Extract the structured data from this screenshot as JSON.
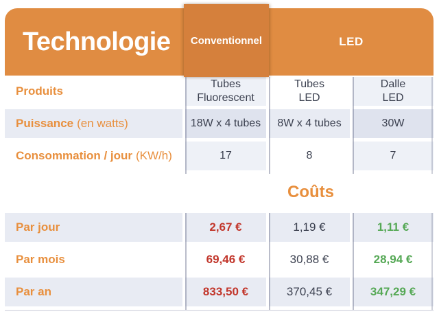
{
  "header": {
    "title": "Technologie",
    "columns": {
      "conventionnel": "Conventionnel",
      "led": "LED"
    }
  },
  "specs": {
    "produits": {
      "label": "Produits",
      "conventionnel": {
        "line1": "Tubes",
        "line2": "Fluorescent"
      },
      "tubes_led": {
        "line1": "Tubes",
        "line2": "LED"
      },
      "dalle_led": {
        "line1": "Dalle",
        "line2": "LED"
      }
    },
    "puissance": {
      "label": "Puissance",
      "unit": "(en watts)",
      "conventionnel": "18W x 4 tubes",
      "tubes_led": "8W x 4 tubes",
      "dalle_led": "30W"
    },
    "consommation": {
      "label": "Consommation / jour",
      "unit": "(KW/h)",
      "conventionnel": "17",
      "tubes_led": "8",
      "dalle_led": "7"
    }
  },
  "costs": {
    "title": "Coûts",
    "par_jour": {
      "label": "Par jour",
      "conventionnel": "2,67 €",
      "tubes_led": "1,19 €",
      "dalle_led": "1,11 €"
    },
    "par_mois": {
      "label": "Par mois",
      "conventionnel": "69,46 €",
      "tubes_led": "30,88 €",
      "dalle_led": "28,94 €"
    },
    "par_an": {
      "label": "Par an",
      "conventionnel": "833,50 €",
      "tubes_led": "370,45 €",
      "dalle_led": "347,29 €"
    }
  },
  "colors": {
    "header_orange": "#e08c42",
    "conventionnel_orange": "#d5803c",
    "label_orange": "#e88f3d",
    "row_stripe": "#e8ebf3",
    "cost_high_red": "#c2372c",
    "cost_low_green": "#55a855",
    "value_text": "#3c4150"
  },
  "chart_data": {
    "type": "table",
    "title": "Technologie",
    "column_groups": [
      {
        "label": "Conventionnel",
        "span": 1
      },
      {
        "label": "LED",
        "span": 2
      }
    ],
    "columns": [
      "Tubes Fluorescent",
      "Tubes LED",
      "Dalle LED"
    ],
    "rows": [
      {
        "label": "Puissance (en watts)",
        "values": [
          "18W x 4 tubes",
          "8W x 4 tubes",
          "30W"
        ]
      },
      {
        "label": "Consommation / jour (KW/h)",
        "values": [
          17,
          8,
          7
        ]
      },
      {
        "label": "Coûts par jour (€)",
        "values": [
          2.67,
          1.19,
          1.11
        ]
      },
      {
        "label": "Coûts par mois (€)",
        "values": [
          69.46,
          30.88,
          28.94
        ]
      },
      {
        "label": "Coûts par an (€)",
        "values": [
          833.5,
          370.45,
          347.29
        ]
      }
    ],
    "value_highlights": {
      "conventionnel": "red (highest cost)",
      "dalle_led": "green (lowest cost)"
    }
  }
}
